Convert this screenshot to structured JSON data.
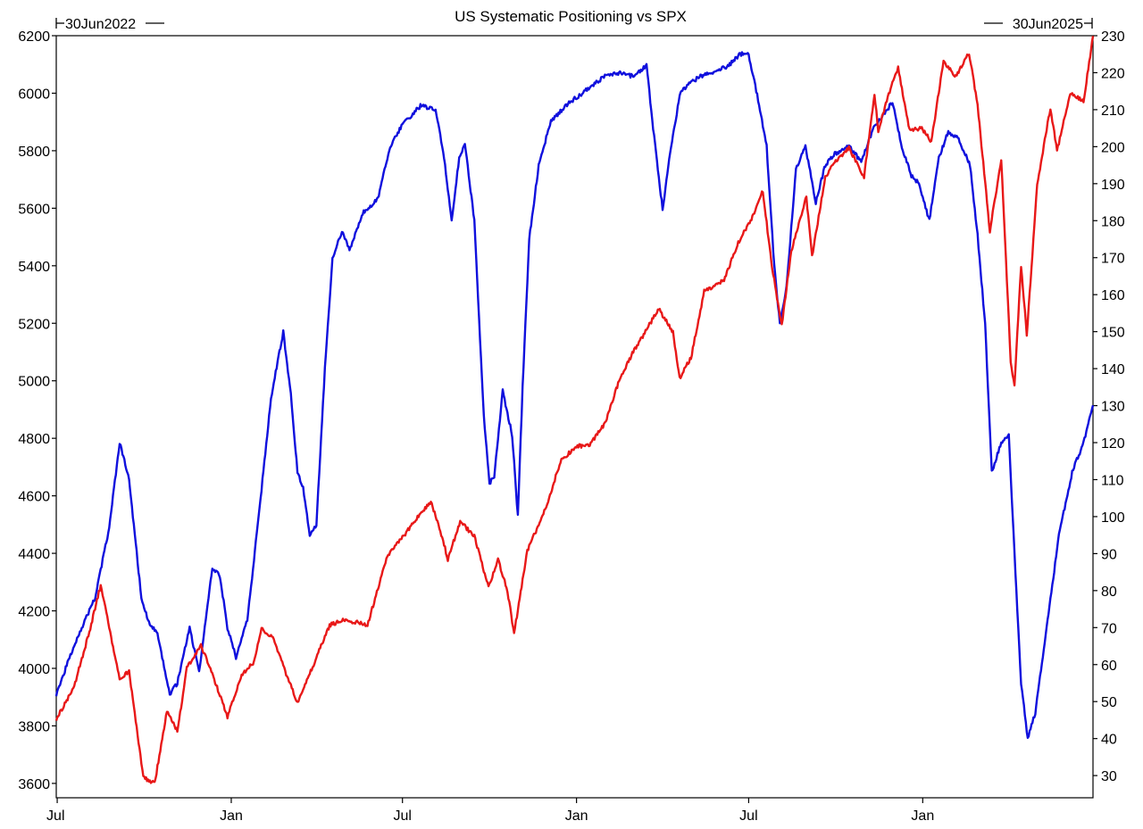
{
  "chart_data": {
    "type": "line",
    "title": "US Systematic Positioning vs SPX",
    "start_label": "30Jun2022",
    "end_label": "30Jun2025",
    "x_tick_labels": [
      "Jul",
      "Jan",
      "Jul",
      "Jan",
      "Jul",
      "Jan"
    ],
    "x_ticks": [
      "2022-07-01",
      "2023-01-01",
      "2023-07-01",
      "2024-01-01",
      "2024-07-01",
      "2025-01-01"
    ],
    "x_range": [
      "2022-06-30",
      "2025-06-30"
    ],
    "left_axis": {
      "ylim": [
        3550,
        6200
      ],
      "ticks": [
        3600,
        3800,
        4000,
        4200,
        4400,
        4600,
        4800,
        5000,
        5200,
        5400,
        5600,
        5800,
        6000,
        6200
      ]
    },
    "right_axis": {
      "ylim": [
        24,
        230
      ],
      "ticks": [
        30,
        40,
        50,
        60,
        70,
        80,
        90,
        100,
        110,
        120,
        130,
        140,
        150,
        160,
        170,
        180,
        190,
        200,
        210,
        220,
        230
      ]
    },
    "grid": false,
    "series": [
      {
        "axis": "right",
        "color": "#1010dd",
        "points": [
          [
            "2022-06-30",
            52
          ],
          [
            "2022-07-20",
            66
          ],
          [
            "2022-08-10",
            78
          ],
          [
            "2022-08-25",
            97
          ],
          [
            "2022-09-05",
            120
          ],
          [
            "2022-09-15",
            110
          ],
          [
            "2022-09-28",
            78
          ],
          [
            "2022-10-05",
            72
          ],
          [
            "2022-10-15",
            68
          ],
          [
            "2022-10-28",
            52
          ],
          [
            "2022-11-05",
            55
          ],
          [
            "2022-11-18",
            70
          ],
          [
            "2022-11-28",
            58
          ],
          [
            "2022-12-05",
            72
          ],
          [
            "2022-12-12",
            86
          ],
          [
            "2022-12-20",
            84
          ],
          [
            "2022-12-28",
            70
          ],
          [
            "2023-01-06",
            62
          ],
          [
            "2023-01-18",
            72
          ],
          [
            "2023-01-30",
            100
          ],
          [
            "2023-02-12",
            132
          ],
          [
            "2023-02-25",
            150
          ],
          [
            "2023-03-05",
            133
          ],
          [
            "2023-03-12",
            112
          ],
          [
            "2023-03-18",
            108
          ],
          [
            "2023-03-25",
            95
          ],
          [
            "2023-04-01",
            98
          ],
          [
            "2023-04-10",
            140
          ],
          [
            "2023-04-18",
            170
          ],
          [
            "2023-04-28",
            177
          ],
          [
            "2023-05-06",
            172
          ],
          [
            "2023-05-20",
            182
          ],
          [
            "2023-06-05",
            186
          ],
          [
            "2023-06-18",
            200
          ],
          [
            "2023-07-01",
            206
          ],
          [
            "2023-07-20",
            211
          ],
          [
            "2023-08-05",
            210
          ],
          [
            "2023-08-14",
            197
          ],
          [
            "2023-08-22",
            180
          ],
          [
            "2023-08-30",
            197
          ],
          [
            "2023-09-05",
            201
          ],
          [
            "2023-09-15",
            180
          ],
          [
            "2023-09-25",
            127
          ],
          [
            "2023-10-01",
            109
          ],
          [
            "2023-10-06",
            111
          ],
          [
            "2023-10-15",
            134
          ],
          [
            "2023-10-25",
            122
          ],
          [
            "2023-10-31",
            100
          ],
          [
            "2023-11-05",
            135
          ],
          [
            "2023-11-12",
            175
          ],
          [
            "2023-11-22",
            195
          ],
          [
            "2023-12-05",
            207
          ],
          [
            "2023-12-25",
            212
          ],
          [
            "2024-01-15",
            216
          ],
          [
            "2024-01-31",
            219
          ],
          [
            "2024-02-15",
            220
          ],
          [
            "2024-03-01",
            219
          ],
          [
            "2024-03-15",
            222
          ],
          [
            "2024-03-22",
            205
          ],
          [
            "2024-04-01",
            183
          ],
          [
            "2024-04-10",
            200
          ],
          [
            "2024-04-20",
            215
          ],
          [
            "2024-05-10",
            219
          ],
          [
            "2024-05-25",
            220
          ],
          [
            "2024-06-10",
            222
          ],
          [
            "2024-06-22",
            225
          ],
          [
            "2024-07-01",
            225
          ],
          [
            "2024-07-10",
            214
          ],
          [
            "2024-07-20",
            200
          ],
          [
            "2024-07-28",
            168
          ],
          [
            "2024-08-03",
            152
          ],
          [
            "2024-08-10",
            162
          ],
          [
            "2024-08-20",
            194
          ],
          [
            "2024-08-30",
            200
          ],
          [
            "2024-09-10",
            185
          ],
          [
            "2024-09-20",
            195
          ],
          [
            "2024-09-30",
            198
          ],
          [
            "2024-10-15",
            200
          ],
          [
            "2024-10-28",
            196
          ],
          [
            "2024-11-10",
            205
          ],
          [
            "2024-11-30",
            212
          ],
          [
            "2024-12-10",
            200
          ],
          [
            "2024-12-20",
            192
          ],
          [
            "2024-12-28",
            190
          ],
          [
            "2025-01-08",
            180
          ],
          [
            "2025-01-18",
            197
          ],
          [
            "2025-01-28",
            204
          ],
          [
            "2025-02-08",
            202
          ],
          [
            "2025-02-20",
            195
          ],
          [
            "2025-02-28",
            176
          ],
          [
            "2025-03-08",
            152
          ],
          [
            "2025-03-15",
            112
          ],
          [
            "2025-03-25",
            120
          ],
          [
            "2025-04-02",
            122
          ],
          [
            "2025-04-08",
            90
          ],
          [
            "2025-04-15",
            55
          ],
          [
            "2025-04-22",
            40
          ],
          [
            "2025-04-30",
            47
          ],
          [
            "2025-05-12",
            70
          ],
          [
            "2025-05-25",
            95
          ],
          [
            "2025-06-08",
            112
          ],
          [
            "2025-06-20",
            120
          ],
          [
            "2025-06-30",
            130
          ]
        ]
      },
      {
        "axis": "left",
        "color": "#e81818",
        "points": [
          [
            "2022-06-30",
            3825
          ],
          [
            "2022-07-10",
            3880
          ],
          [
            "2022-07-20",
            3950
          ],
          [
            "2022-08-05",
            4140
          ],
          [
            "2022-08-16",
            4290
          ],
          [
            "2022-08-25",
            4140
          ],
          [
            "2022-09-05",
            3960
          ],
          [
            "2022-09-15",
            3990
          ],
          [
            "2022-09-30",
            3620
          ],
          [
            "2022-10-12",
            3600
          ],
          [
            "2022-10-25",
            3850
          ],
          [
            "2022-11-05",
            3780
          ],
          [
            "2022-11-15",
            4000
          ],
          [
            "2022-11-30",
            4080
          ],
          [
            "2022-12-12",
            3980
          ],
          [
            "2022-12-28",
            3830
          ],
          [
            "2023-01-12",
            3980
          ],
          [
            "2023-01-25",
            4020
          ],
          [
            "2023-02-02",
            4140
          ],
          [
            "2023-02-15",
            4100
          ],
          [
            "2023-02-28",
            3980
          ],
          [
            "2023-03-12",
            3880
          ],
          [
            "2023-03-25",
            3980
          ],
          [
            "2023-04-15",
            4150
          ],
          [
            "2023-05-01",
            4170
          ],
          [
            "2023-05-25",
            4150
          ],
          [
            "2023-06-15",
            4390
          ],
          [
            "2023-06-30",
            4450
          ],
          [
            "2023-07-15",
            4520
          ],
          [
            "2023-07-31",
            4580
          ],
          [
            "2023-08-10",
            4480
          ],
          [
            "2023-08-18",
            4380
          ],
          [
            "2023-08-31",
            4510
          ],
          [
            "2023-09-15",
            4460
          ],
          [
            "2023-09-30",
            4280
          ],
          [
            "2023-10-10",
            4380
          ],
          [
            "2023-10-20",
            4270
          ],
          [
            "2023-10-27",
            4120
          ],
          [
            "2023-11-10",
            4410
          ],
          [
            "2023-11-30",
            4560
          ],
          [
            "2023-12-15",
            4720
          ],
          [
            "2023-12-31",
            4770
          ],
          [
            "2024-01-15",
            4780
          ],
          [
            "2024-01-31",
            4850
          ],
          [
            "2024-02-15",
            5000
          ],
          [
            "2024-03-01",
            5100
          ],
          [
            "2024-03-28",
            5250
          ],
          [
            "2024-04-12",
            5170
          ],
          [
            "2024-04-19",
            5010
          ],
          [
            "2024-05-01",
            5080
          ],
          [
            "2024-05-15",
            5310
          ],
          [
            "2024-06-05",
            5350
          ],
          [
            "2024-06-20",
            5480
          ],
          [
            "2024-07-05",
            5570
          ],
          [
            "2024-07-16",
            5660
          ],
          [
            "2024-07-25",
            5410
          ],
          [
            "2024-08-05",
            5190
          ],
          [
            "2024-08-15",
            5450
          ],
          [
            "2024-08-31",
            5640
          ],
          [
            "2024-09-06",
            5430
          ],
          [
            "2024-09-20",
            5710
          ],
          [
            "2024-09-30",
            5760
          ],
          [
            "2024-10-15",
            5810
          ],
          [
            "2024-10-31",
            5710
          ],
          [
            "2024-11-11",
            6000
          ],
          [
            "2024-11-15",
            5870
          ],
          [
            "2024-11-29",
            6030
          ],
          [
            "2024-12-06",
            6090
          ],
          [
            "2024-12-18",
            5870
          ],
          [
            "2024-12-31",
            5880
          ],
          [
            "2025-01-10",
            5830
          ],
          [
            "2025-01-23",
            6110
          ],
          [
            "2025-02-05",
            6060
          ],
          [
            "2025-02-19",
            6140
          ],
          [
            "2025-02-28",
            5960
          ],
          [
            "2025-03-13",
            5520
          ],
          [
            "2025-03-25",
            5770
          ],
          [
            "2025-04-04",
            5070
          ],
          [
            "2025-04-08",
            4982
          ],
          [
            "2025-04-15",
            5400
          ],
          [
            "2025-04-21",
            5160
          ],
          [
            "2025-05-02",
            5680
          ],
          [
            "2025-05-16",
            5950
          ],
          [
            "2025-05-23",
            5800
          ],
          [
            "2025-06-06",
            6000
          ],
          [
            "2025-06-20",
            5970
          ],
          [
            "2025-06-30",
            6200
          ]
        ]
      }
    ]
  }
}
